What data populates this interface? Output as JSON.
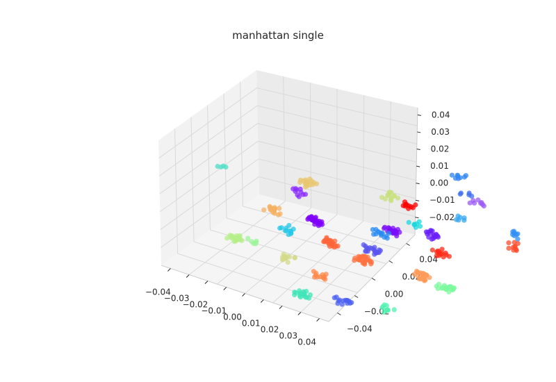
{
  "chart_data": {
    "type": "scatter",
    "subtype": "3d-scatter",
    "title": "manhattan single",
    "xlabel": "",
    "ylabel": "",
    "zlabel": "",
    "x_ticks": [
      "−0.04",
      "−0.03",
      "−0.02",
      "−0.01",
      "0.00",
      "0.01",
      "0.02",
      "0.03",
      "0.04"
    ],
    "y_ticks": [
      "0.04",
      "0.02",
      "0.00",
      "−0.02",
      "−0.04"
    ],
    "z_ticks": [
      "0.04",
      "0.03",
      "0.02",
      "0.01",
      "0.00",
      "−0.01",
      "−0.02"
    ],
    "xlim": [
      -0.045,
      0.045
    ],
    "ylim": [
      -0.045,
      0.045
    ],
    "zlim": [
      -0.028,
      0.045
    ],
    "grid": true,
    "legend": "none",
    "colormap": "rainbow",
    "pane_color": "#f2f2f2",
    "grid_color": "#d9d9d9",
    "clusters": [
      {
        "color": "#7f00ff",
        "x": -0.035,
        "y": 0.0,
        "z": -0.01,
        "n": 26
      },
      {
        "color": "#7a0cf9",
        "x": -0.02,
        "y": 0.02,
        "z": -0.01,
        "n": 22
      },
      {
        "color": "#6a1ffa",
        "x": -0.01,
        "y": 0.03,
        "z": -0.008,
        "n": 18
      },
      {
        "color": "#8a2bff",
        "x": -0.03,
        "y": -0.01,
        "z": 0.012,
        "n": 10
      },
      {
        "color": "#9b59f5",
        "x": 0.0,
        "y": 0.04,
        "z": 0.018,
        "n": 8
      },
      {
        "color": "#5a54f0",
        "x": 0.0,
        "y": 0.0,
        "z": -0.01,
        "n": 22
      },
      {
        "color": "#4a5ff0",
        "x": 0.03,
        "y": -0.03,
        "z": -0.025,
        "n": 14
      },
      {
        "color": "#3d6cf0",
        "x": 0.01,
        "y": 0.03,
        "z": 0.03,
        "n": 5
      },
      {
        "color": "#2f86f3",
        "x": -0.01,
        "y": 0.04,
        "z": 0.03,
        "n": 8
      },
      {
        "color": "#2a8bf2",
        "x": 0.02,
        "y": -0.01,
        "z": 0.012,
        "n": 14
      },
      {
        "color": "#2f8ff3",
        "x": 0.04,
        "y": 0.03,
        "z": 0.02,
        "n": 8
      },
      {
        "color": "#35a7f0",
        "x": 0.02,
        "y": 0.02,
        "z": 0.02,
        "n": 6
      },
      {
        "color": "#26c7e8",
        "x": -0.02,
        "y": -0.02,
        "z": -0.006,
        "n": 12
      },
      {
        "color": "#19d8de",
        "x": 0.01,
        "y": 0.01,
        "z": 0.012,
        "n": 8
      },
      {
        "color": "#4ddfc7",
        "x": -0.03,
        "y": -0.04,
        "z": 0.03,
        "n": 4
      },
      {
        "color": "#40e6b8",
        "x": 0.02,
        "y": -0.04,
        "z": -0.025,
        "n": 18
      },
      {
        "color": "#52f2b0",
        "x": 0.04,
        "y": -0.02,
        "z": -0.025,
        "n": 10
      },
      {
        "color": "#7dfa9e",
        "x": 0.045,
        "y": 0.0,
        "z": -0.01,
        "n": 22
      },
      {
        "color": "#9cf49a",
        "x": -0.04,
        "y": -0.02,
        "z": -0.025,
        "n": 6
      },
      {
        "color": "#b5ef88",
        "x": -0.02,
        "y": -0.04,
        "z": -0.01,
        "n": 20
      },
      {
        "color": "#c8e07e",
        "x": -0.02,
        "y": 0.02,
        "z": 0.012,
        "n": 14
      },
      {
        "color": "#d3d98a",
        "x": -0.02,
        "y": -0.02,
        "z": -0.025,
        "n": 14
      },
      {
        "color": "#e8c66e",
        "x": -0.04,
        "y": 0.0,
        "z": 0.012,
        "n": 16
      },
      {
        "color": "#f5b061",
        "x": -0.045,
        "y": -0.01,
        "z": -0.008,
        "n": 16
      },
      {
        "color": "#ff9b5a",
        "x": 0.03,
        "y": 0.0,
        "z": -0.01,
        "n": 26
      },
      {
        "color": "#ff8748",
        "x": 0.0,
        "y": -0.02,
        "z": -0.025,
        "n": 12
      },
      {
        "color": "#ff7240",
        "x": 0.01,
        "y": -0.01,
        "z": -0.01,
        "n": 26
      },
      {
        "color": "#ff6638",
        "x": -0.01,
        "y": -0.01,
        "z": -0.01,
        "n": 26
      },
      {
        "color": "#ff4b2a",
        "x": 0.04,
        "y": 0.03,
        "z": 0.012,
        "n": 10
      },
      {
        "color": "#ff2a15",
        "x": 0.01,
        "y": 0.02,
        "z": -0.008,
        "n": 14
      },
      {
        "color": "#ff0000",
        "x": -0.01,
        "y": 0.02,
        "z": 0.012,
        "n": 10
      }
    ]
  }
}
